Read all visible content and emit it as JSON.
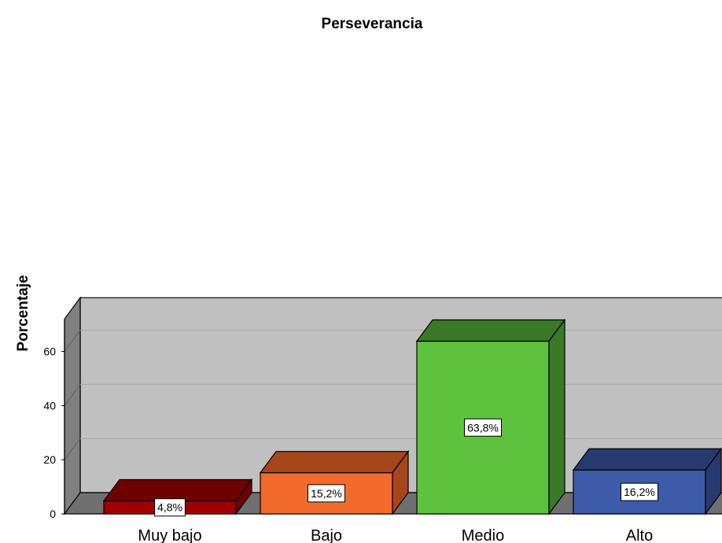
{
  "chart_data": {
    "type": "bar",
    "title": "Perseverancia",
    "xlabel": "",
    "ylabel": "Porcentaje",
    "categories": [
      "Muy bajo",
      "Bajo",
      "Medio",
      "Alto"
    ],
    "values": [
      4.8,
      15.2,
      63.8,
      16.2
    ],
    "data_labels": [
      "4,8%",
      "15,2%",
      "63,8%",
      "16,2%"
    ],
    "yticks": [
      0,
      20,
      40,
      60
    ],
    "ylim": [
      0,
      72
    ],
    "grid": true,
    "three_d": true,
    "colors": {
      "front": [
        "#a00000",
        "#f26b2c",
        "#5ec23e",
        "#3e5baa"
      ],
      "top": [
        "#6e0000",
        "#a6461b",
        "#3a7a26",
        "#273a70"
      ],
      "side": [
        "#6e0000",
        "#a6461b",
        "#3a7a26",
        "#273a70"
      ],
      "wall": "#c0c0c0",
      "side_wall": "#808080",
      "floor": "#707070",
      "grid": "#a8a8a8"
    }
  }
}
